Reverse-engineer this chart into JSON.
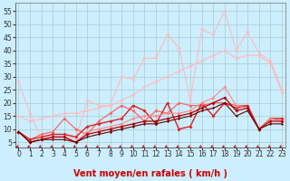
{
  "bg_color": "#cceeff",
  "grid_color": "#aacccc",
  "xlabel": "Vent moyen/en rafales ( km/h )",
  "xlabel_color": "#cc0000",
  "xlabel_fontsize": 7,
  "yticks": [
    5,
    10,
    15,
    20,
    25,
    30,
    35,
    40,
    45,
    50,
    55
  ],
  "xticks": [
    0,
    1,
    2,
    3,
    4,
    5,
    6,
    7,
    8,
    9,
    10,
    11,
    12,
    13,
    14,
    15,
    16,
    17,
    18,
    19,
    20,
    21,
    22,
    23
  ],
  "ylim": [
    3,
    58
  ],
  "xlim": [
    -0.3,
    23.3
  ],
  "series": [
    {
      "y": [
        28,
        16,
        6,
        8,
        8,
        6,
        21,
        19,
        19,
        30,
        29,
        37,
        37,
        46,
        41,
        21,
        48,
        46,
        55,
        40,
        47,
        39,
        36,
        25
      ],
      "color": "#ffbbbb",
      "lw": 0.8,
      "ms": 2.0
    },
    {
      "y": [
        15,
        13,
        14,
        15,
        16,
        16,
        17,
        18,
        19,
        21,
        23,
        26,
        28,
        30,
        32,
        34,
        36,
        38,
        40,
        37,
        38,
        38,
        35,
        24
      ],
      "color": "#ffbbbb",
      "lw": 0.8,
      "ms": 2.0
    },
    {
      "y": [
        9,
        6,
        8,
        9,
        14,
        10,
        8,
        13,
        16,
        19,
        17,
        13,
        17,
        16,
        20,
        19,
        19,
        20,
        20,
        19,
        19,
        10,
        14,
        14
      ],
      "color": "#ff6666",
      "lw": 0.9,
      "ms": 2.0
    },
    {
      "y": [
        9,
        6,
        7,
        8,
        8,
        7,
        11,
        12,
        13,
        14,
        19,
        17,
        12,
        20,
        10,
        11,
        20,
        15,
        20,
        18,
        19,
        10,
        14,
        14
      ],
      "color": "#dd2222",
      "lw": 1.0,
      "ms": 2.0
    },
    {
      "y": [
        9,
        5,
        6,
        7,
        7,
        5,
        9,
        10,
        11,
        12,
        14,
        15,
        15,
        16,
        16,
        17,
        20,
        22,
        26,
        19,
        18,
        10,
        14,
        13
      ],
      "color": "#ff8888",
      "lw": 0.8,
      "ms": 2.0
    },
    {
      "y": [
        9,
        5,
        6,
        7,
        7,
        5,
        8,
        9,
        10,
        11,
        12,
        13,
        13,
        14,
        15,
        16,
        18,
        20,
        22,
        17,
        18,
        10,
        13,
        13
      ],
      "color": "#aa0000",
      "lw": 0.9,
      "ms": 2.0
    },
    {
      "y": [
        9,
        5,
        6,
        6,
        6,
        5,
        7,
        8,
        9,
        10,
        11,
        12,
        12,
        13,
        14,
        15,
        17,
        18,
        20,
        15,
        17,
        10,
        12,
        12
      ],
      "color": "#660000",
      "lw": 0.8,
      "ms": 1.5
    }
  ],
  "arrow_color": "#cc0000",
  "tick_fontsize": 5.5,
  "ytick_fontsize": 5.5
}
